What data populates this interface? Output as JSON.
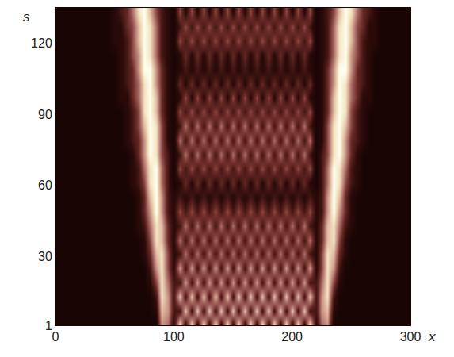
{
  "chart_data": {
    "type": "heatmap",
    "x_label": "x",
    "y_label": "s",
    "xlim": [
      0,
      300
    ],
    "xticks": [
      0,
      100,
      200,
      300
    ],
    "ylim": [
      1,
      135
    ],
    "yticks": [
      1,
      30,
      60,
      90,
      120
    ],
    "zlim": [
      0,
      9
    ],
    "grid": false,
    "x": [
      0,
      5,
      10,
      15,
      20,
      25,
      30,
      35,
      40,
      45,
      50,
      55,
      60,
      65,
      70,
      75,
      80,
      85,
      90,
      95,
      100,
      105,
      110,
      115,
      120,
      125,
      130,
      135,
      140,
      145,
      150,
      155,
      160,
      165,
      170,
      175,
      180,
      185,
      190,
      195,
      200,
      205,
      210,
      215,
      220,
      225,
      230,
      235,
      240,
      245,
      250,
      255,
      260,
      265,
      270,
      275,
      280,
      285,
      290,
      295,
      300
    ],
    "y": [
      1,
      7,
      13,
      19,
      25,
      31,
      37,
      43,
      49,
      55,
      61,
      67,
      73,
      79,
      85,
      91,
      97,
      103,
      109,
      115,
      121,
      127,
      133
    ],
    "z": [
      [
        0,
        0,
        0,
        0,
        0,
        0,
        0,
        0,
        0,
        0,
        0,
        0,
        0,
        0,
        0,
        0,
        0,
        0,
        6,
        5,
        1,
        8,
        1,
        8,
        1,
        8,
        1,
        8,
        1,
        8,
        1,
        8,
        1,
        8,
        1,
        8,
        1,
        8,
        1,
        8,
        1,
        8,
        1,
        8,
        1,
        5,
        6,
        0,
        0,
        0,
        0,
        0,
        0,
        0,
        0,
        0,
        0,
        0,
        0,
        0,
        0
      ],
      [
        0,
        0,
        0,
        0,
        0,
        0,
        0,
        0,
        0,
        0,
        0,
        0,
        0,
        0,
        0,
        0,
        0,
        1,
        7,
        6,
        2,
        2,
        7,
        2,
        7,
        2,
        7,
        2,
        7,
        2,
        7,
        2,
        7,
        2,
        7,
        2,
        7,
        2,
        7,
        2,
        7,
        2,
        7,
        2,
        2,
        6,
        7,
        1,
        0,
        0,
        0,
        0,
        0,
        0,
        0,
        0,
        0,
        0,
        0,
        0,
        0
      ],
      [
        0,
        0,
        0,
        0,
        0,
        0,
        0,
        0,
        0,
        0,
        0,
        0,
        0,
        0,
        0,
        0,
        0,
        2,
        8,
        6,
        2,
        7,
        2,
        7,
        2,
        7,
        2,
        7,
        2,
        7,
        2,
        7,
        2,
        7,
        2,
        7,
        2,
        7,
        2,
        7,
        2,
        7,
        2,
        7,
        2,
        6,
        8,
        2,
        0,
        0,
        0,
        0,
        0,
        0,
        0,
        0,
        0,
        0,
        0,
        0,
        0
      ],
      [
        0,
        0,
        0,
        0,
        0,
        0,
        0,
        0,
        0,
        0,
        0,
        0,
        0,
        0,
        0,
        0,
        1,
        4,
        8,
        5,
        2,
        2,
        6,
        2,
        6,
        2,
        6,
        2,
        6,
        2,
        6,
        2,
        6,
        2,
        6,
        2,
        6,
        2,
        6,
        2,
        6,
        2,
        6,
        2,
        2,
        5,
        8,
        4,
        1,
        0,
        0,
        0,
        0,
        0,
        0,
        0,
        0,
        0,
        0,
        0,
        0
      ],
      [
        0,
        0,
        0,
        0,
        0,
        0,
        0,
        0,
        0,
        0,
        0,
        0,
        0,
        0,
        0,
        0,
        2,
        6,
        8,
        4,
        1,
        6,
        2,
        6,
        2,
        6,
        2,
        6,
        2,
        6,
        2,
        6,
        2,
        6,
        2,
        6,
        2,
        6,
        2,
        6,
        2,
        6,
        2,
        6,
        1,
        4,
        8,
        6,
        2,
        0,
        0,
        0,
        0,
        0,
        0,
        0,
        0,
        0,
        0,
        0,
        0
      ],
      [
        0,
        0,
        0,
        0,
        0,
        0,
        0,
        0,
        0,
        0,
        0,
        0,
        0,
        0,
        0,
        1,
        3,
        7,
        8,
        4,
        1,
        2,
        5,
        2,
        5,
        2,
        5,
        2,
        5,
        2,
        5,
        2,
        5,
        2,
        5,
        2,
        5,
        2,
        5,
        2,
        5,
        2,
        5,
        2,
        1,
        4,
        8,
        7,
        3,
        1,
        0,
        0,
        0,
        0,
        0,
        0,
        0,
        0,
        0,
        0,
        0
      ],
      [
        0,
        0,
        0,
        0,
        0,
        0,
        0,
        0,
        0,
        0,
        0,
        0,
        0,
        0,
        0,
        1,
        4,
        8,
        7,
        3,
        1,
        5,
        2,
        5,
        2,
        5,
        2,
        5,
        2,
        5,
        2,
        5,
        2,
        5,
        2,
        5,
        2,
        5,
        2,
        5,
        2,
        5,
        2,
        5,
        1,
        3,
        7,
        8,
        4,
        1,
        0,
        0,
        0,
        0,
        0,
        0,
        0,
        0,
        0,
        0,
        0
      ],
      [
        0,
        0,
        0,
        0,
        0,
        0,
        0,
        0,
        0,
        0,
        0,
        0,
        0,
        0,
        1,
        2,
        5,
        8,
        7,
        3,
        1,
        2,
        5,
        2,
        5,
        2,
        5,
        2,
        5,
        2,
        5,
        2,
        5,
        2,
        5,
        2,
        5,
        2,
        5,
        2,
        5,
        2,
        5,
        2,
        1,
        3,
        7,
        8,
        5,
        2,
        1,
        0,
        0,
        0,
        0,
        0,
        0,
        0,
        0,
        0,
        0
      ],
      [
        0,
        0,
        0,
        0,
        0,
        0,
        0,
        0,
        0,
        0,
        0,
        0,
        0,
        0,
        1,
        3,
        6,
        9,
        6,
        2,
        1,
        4,
        2,
        4,
        2,
        4,
        2,
        4,
        2,
        4,
        2,
        4,
        2,
        4,
        2,
        4,
        2,
        4,
        2,
        4,
        2,
        4,
        2,
        4,
        1,
        2,
        6,
        9,
        6,
        3,
        1,
        0,
        0,
        0,
        0,
        0,
        0,
        0,
        0,
        0,
        0
      ],
      [
        0,
        0,
        0,
        0,
        0,
        0,
        0,
        0,
        0,
        0,
        0,
        0,
        0,
        0,
        1,
        3,
        7,
        9,
        6,
        2,
        1,
        2,
        1,
        2,
        1,
        2,
        1,
        2,
        1,
        2,
        1,
        2,
        1,
        2,
        1,
        2,
        1,
        2,
        1,
        2,
        1,
        2,
        1,
        2,
        1,
        2,
        6,
        9,
        7,
        3,
        1,
        0,
        0,
        0,
        0,
        0,
        0,
        0,
        0,
        0,
        0
      ],
      [
        0,
        0,
        0,
        0,
        0,
        0,
        0,
        0,
        0,
        0,
        0,
        0,
        0,
        1,
        2,
        4,
        8,
        9,
        5,
        2,
        0,
        1,
        3,
        1,
        3,
        1,
        3,
        1,
        3,
        1,
        3,
        1,
        3,
        1,
        3,
        1,
        3,
        1,
        3,
        1,
        3,
        1,
        3,
        1,
        0,
        2,
        5,
        9,
        8,
        4,
        2,
        1,
        0,
        0,
        0,
        0,
        0,
        0,
        0,
        0,
        0
      ],
      [
        0,
        0,
        0,
        0,
        0,
        0,
        0,
        0,
        0,
        0,
        0,
        0,
        0,
        1,
        2,
        5,
        8,
        9,
        5,
        2,
        0,
        4,
        2,
        4,
        2,
        4,
        2,
        4,
        2,
        4,
        2,
        4,
        2,
        4,
        2,
        4,
        2,
        4,
        2,
        4,
        2,
        4,
        2,
        4,
        0,
        2,
        5,
        9,
        8,
        5,
        2,
        1,
        0,
        0,
        0,
        0,
        0,
        0,
        0,
        0,
        0
      ],
      [
        0,
        0,
        0,
        0,
        0,
        0,
        0,
        0,
        0,
        0,
        0,
        0,
        0,
        1,
        3,
        6,
        9,
        8,
        4,
        2,
        0,
        2,
        5,
        2,
        5,
        2,
        5,
        2,
        5,
        2,
        5,
        2,
        5,
        2,
        5,
        2,
        5,
        2,
        5,
        2,
        5,
        2,
        5,
        2,
        0,
        2,
        4,
        8,
        9,
        6,
        3,
        1,
        0,
        0,
        0,
        0,
        0,
        0,
        0,
        0,
        0
      ],
      [
        0,
        0,
        0,
        0,
        0,
        0,
        0,
        0,
        0,
        0,
        0,
        0,
        1,
        2,
        3,
        6,
        9,
        8,
        4,
        1,
        0,
        5,
        2,
        5,
        2,
        5,
        2,
        5,
        2,
        5,
        2,
        5,
        2,
        5,
        2,
        5,
        2,
        5,
        2,
        5,
        2,
        5,
        2,
        5,
        0,
        1,
        4,
        8,
        9,
        6,
        3,
        2,
        1,
        0,
        0,
        0,
        0,
        0,
        0,
        0,
        0
      ],
      [
        0,
        0,
        0,
        0,
        0,
        0,
        0,
        0,
        0,
        0,
        0,
        0,
        1,
        2,
        4,
        7,
        9,
        8,
        4,
        1,
        0,
        2,
        5,
        2,
        5,
        2,
        5,
        2,
        5,
        2,
        5,
        2,
        5,
        2,
        5,
        2,
        5,
        2,
        5,
        2,
        5,
        2,
        5,
        2,
        0,
        1,
        4,
        8,
        9,
        7,
        4,
        2,
        1,
        0,
        0,
        0,
        0,
        0,
        0,
        0,
        0
      ],
      [
        0,
        0,
        0,
        0,
        0,
        0,
        0,
        0,
        0,
        0,
        0,
        0,
        1,
        2,
        4,
        8,
        9,
        7,
        3,
        1,
        0,
        4,
        2,
        4,
        2,
        4,
        2,
        4,
        2,
        4,
        2,
        4,
        2,
        4,
        2,
        4,
        2,
        4,
        2,
        4,
        2,
        4,
        2,
        4,
        0,
        1,
        3,
        7,
        9,
        8,
        4,
        2,
        1,
        0,
        0,
        0,
        0,
        0,
        0,
        0,
        0
      ],
      [
        0,
        0,
        0,
        0,
        0,
        0,
        0,
        0,
        0,
        0,
        0,
        1,
        1,
        3,
        5,
        8,
        9,
        7,
        3,
        1,
        0,
        1,
        4,
        1,
        4,
        1,
        4,
        1,
        4,
        1,
        4,
        1,
        4,
        1,
        4,
        1,
        4,
        1,
        4,
        1,
        4,
        1,
        4,
        1,
        0,
        1,
        3,
        7,
        9,
        8,
        5,
        3,
        1,
        1,
        0,
        0,
        0,
        0,
        0,
        0,
        0
      ],
      [
        0,
        0,
        0,
        0,
        0,
        0,
        0,
        0,
        0,
        0,
        0,
        1,
        2,
        3,
        5,
        8,
        9,
        6,
        3,
        1,
        0,
        3,
        1,
        3,
        1,
        3,
        1,
        3,
        1,
        3,
        1,
        3,
        1,
        3,
        1,
        3,
        1,
        3,
        1,
        3,
        1,
        3,
        1,
        3,
        0,
        1,
        3,
        6,
        9,
        8,
        5,
        3,
        2,
        1,
        0,
        0,
        0,
        0,
        0,
        0,
        0
      ],
      [
        0,
        0,
        0,
        0,
        0,
        0,
        0,
        0,
        0,
        0,
        0,
        1,
        2,
        3,
        6,
        9,
        9,
        6,
        3,
        1,
        0,
        1,
        2,
        1,
        2,
        1,
        2,
        1,
        2,
        1,
        2,
        1,
        2,
        1,
        2,
        1,
        2,
        1,
        2,
        1,
        2,
        1,
        2,
        1,
        0,
        1,
        3,
        6,
        9,
        9,
        6,
        3,
        2,
        1,
        0,
        0,
        0,
        0,
        0,
        0,
        0
      ],
      [
        0,
        0,
        0,
        0,
        0,
        0,
        0,
        0,
        0,
        0,
        0,
        1,
        2,
        4,
        6,
        9,
        8,
        5,
        2,
        1,
        0,
        1,
        3,
        1,
        3,
        1,
        3,
        1,
        3,
        1,
        3,
        1,
        3,
        1,
        3,
        1,
        3,
        1,
        3,
        1,
        3,
        1,
        3,
        1,
        0,
        1,
        2,
        5,
        8,
        9,
        6,
        4,
        2,
        1,
        0,
        0,
        0,
        0,
        0,
        0,
        0
      ],
      [
        0,
        0,
        0,
        0,
        0,
        0,
        0,
        0,
        0,
        0,
        1,
        1,
        2,
        4,
        7,
        9,
        8,
        5,
        2,
        1,
        0,
        4,
        2,
        4,
        2,
        4,
        2,
        4,
        2,
        4,
        2,
        4,
        2,
        4,
        2,
        4,
        2,
        4,
        2,
        4,
        2,
        4,
        2,
        4,
        0,
        1,
        2,
        5,
        8,
        9,
        7,
        4,
        2,
        1,
        1,
        0,
        0,
        0,
        0,
        0,
        0
      ],
      [
        0,
        0,
        0,
        0,
        0,
        0,
        0,
        0,
        0,
        0,
        1,
        1,
        3,
        4,
        7,
        9,
        8,
        5,
        2,
        1,
        0,
        2,
        4,
        2,
        4,
        2,
        4,
        2,
        4,
        2,
        4,
        2,
        4,
        2,
        4,
        2,
        4,
        2,
        4,
        2,
        4,
        2,
        4,
        2,
        0,
        1,
        2,
        5,
        8,
        9,
        7,
        4,
        3,
        1,
        1,
        0,
        0,
        0,
        0,
        0,
        0
      ],
      [
        0,
        0,
        0,
        0,
        0,
        0,
        0,
        0,
        0,
        0,
        1,
        2,
        3,
        5,
        8,
        9,
        7,
        4,
        2,
        1,
        0,
        4,
        1,
        4,
        1,
        4,
        1,
        4,
        1,
        4,
        1,
        4,
        1,
        4,
        1,
        4,
        1,
        4,
        1,
        4,
        1,
        4,
        1,
        4,
        0,
        1,
        2,
        4,
        7,
        9,
        8,
        5,
        3,
        2,
        1,
        0,
        0,
        0,
        0,
        0,
        0
      ]
    ]
  }
}
